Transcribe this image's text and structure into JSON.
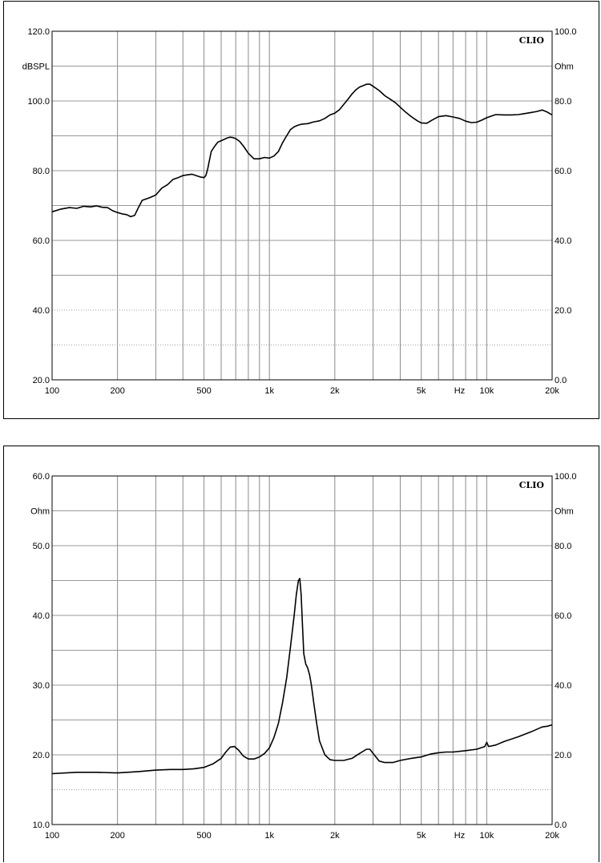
{
  "chart_data": [
    {
      "type": "line",
      "brand": "CLIO",
      "xscale": "log",
      "xlim": [
        100,
        20000
      ],
      "x_ticks": [
        "100",
        "200",
        "500",
        "1k",
        "2k",
        "5k",
        "Hz",
        "10k",
        "20k"
      ],
      "ylim": [
        20,
        120
      ],
      "y_ticks": [
        "120.0",
        "100.0",
        "80.0",
        "60.0",
        "40.0",
        "20.0"
      ],
      "y_unit": "dBSPL",
      "y2lim": [
        0,
        100
      ],
      "y2_ticks": [
        "100.0",
        "80.0",
        "60.0",
        "40.0",
        "20.0",
        "0.0"
      ],
      "y2_unit": "Ohm",
      "grid": true,
      "series": [
        {
          "x": [
            100,
            110,
            120,
            130,
            140,
            150,
            160,
            170,
            180,
            190,
            200,
            210,
            220,
            230,
            240,
            250,
            260,
            280,
            300,
            320,
            340,
            360,
            380,
            400,
            420,
            440,
            460,
            480,
            500,
            510,
            520,
            530,
            540,
            560,
            580,
            600,
            620,
            640,
            660,
            680,
            700,
            730,
            760,
            800,
            850,
            900,
            950,
            1000,
            1050,
            1100,
            1150,
            1200,
            1250,
            1300,
            1350,
            1400,
            1500,
            1600,
            1700,
            1800,
            1900,
            2000,
            2100,
            2200,
            2300,
            2400,
            2500,
            2600,
            2700,
            2800,
            2900,
            3000,
            3200,
            3400,
            3600,
            3800,
            4000,
            4200,
            4500,
            4800,
            5000,
            5300,
            5600,
            6000,
            6500,
            7000,
            7500,
            8000,
            8500,
            9000,
            9500,
            10000,
            11000,
            12000,
            13000,
            14000,
            15000,
            16000,
            17000,
            18000,
            19000,
            20000
          ],
          "values": [
            68.2,
            69.0,
            69.4,
            69.2,
            69.8,
            69.6,
            69.9,
            69.5,
            69.4,
            68.5,
            68.0,
            67.6,
            67.4,
            66.8,
            67.2,
            69.5,
            71.5,
            72.2,
            73.0,
            75.0,
            76.0,
            77.5,
            78.0,
            78.6,
            78.8,
            79.0,
            78.6,
            78.2,
            78.0,
            78.6,
            80.5,
            83.0,
            85.5,
            87.0,
            88.2,
            88.6,
            89.0,
            89.4,
            89.6,
            89.5,
            89.2,
            88.4,
            87.0,
            85.0,
            83.4,
            83.4,
            83.8,
            83.6,
            84.2,
            85.5,
            88.0,
            90.0,
            91.8,
            92.6,
            93.0,
            93.3,
            93.5,
            94.0,
            94.3,
            95.0,
            96.0,
            96.5,
            97.5,
            99.0,
            100.5,
            102.0,
            103.2,
            104.0,
            104.4,
            104.8,
            104.8,
            104.2,
            103.0,
            101.5,
            100.5,
            99.5,
            98.2,
            97.0,
            95.5,
            94.3,
            93.7,
            93.6,
            94.5,
            95.5,
            95.8,
            95.4,
            95.0,
            94.2,
            93.8,
            93.9,
            94.5,
            95.2,
            96.1,
            96.0,
            96.0,
            96.1,
            96.4,
            96.7,
            97.0,
            97.4,
            96.8,
            96.0
          ]
        }
      ]
    },
    {
      "type": "line",
      "brand": "CLIO",
      "xscale": "log",
      "xlim": [
        100,
        20000
      ],
      "x_ticks": [
        "100",
        "200",
        "500",
        "1k",
        "2k",
        "5k",
        "Hz",
        "10k",
        "20k"
      ],
      "ylim": [
        10,
        60
      ],
      "y_ticks": [
        "60.0",
        "50.0",
        "40.0",
        "30.0",
        "20.0",
        "10.0"
      ],
      "y_unit": "Ohm",
      "y2lim": [
        0,
        100
      ],
      "y2_ticks": [
        "100.0",
        "80.0",
        "60.0",
        "40.0",
        "20.0",
        "0.0"
      ],
      "y2_unit": "Ohm",
      "grid": true,
      "series": [
        {
          "x": [
            100,
            130,
            160,
            200,
            250,
            300,
            350,
            400,
            450,
            500,
            550,
            600,
            630,
            660,
            690,
            720,
            760,
            800,
            850,
            900,
            950,
            1000,
            1050,
            1100,
            1150,
            1200,
            1250,
            1300,
            1330,
            1360,
            1380,
            1400,
            1420,
            1440,
            1470,
            1500,
            1530,
            1560,
            1600,
            1650,
            1700,
            1800,
            1900,
            2000,
            2200,
            2400,
            2600,
            2800,
            2900,
            3000,
            3200,
            3400,
            3700,
            4000,
            4500,
            5000,
            5500,
            6000,
            6500,
            7000,
            8000,
            9000,
            9800,
            10000,
            10200,
            11000,
            12000,
            14000,
            16000,
            18000,
            19000,
            20000
          ],
          "values": [
            17.3,
            17.5,
            17.5,
            17.4,
            17.6,
            17.8,
            17.9,
            17.9,
            18.0,
            18.2,
            18.7,
            19.5,
            20.4,
            21.1,
            21.2,
            20.7,
            19.8,
            19.4,
            19.4,
            19.7,
            20.2,
            21.0,
            22.5,
            24.5,
            27.5,
            31.0,
            35.5,
            40.0,
            43.0,
            45.0,
            45.3,
            43.0,
            38.5,
            34.5,
            33.0,
            32.5,
            31.5,
            30.0,
            27.5,
            24.5,
            22.0,
            20.0,
            19.3,
            19.2,
            19.2,
            19.5,
            20.2,
            20.8,
            20.8,
            20.2,
            19.1,
            18.9,
            18.9,
            19.2,
            19.5,
            19.7,
            20.1,
            20.3,
            20.4,
            20.4,
            20.6,
            20.8,
            21.2,
            21.8,
            21.2,
            21.4,
            21.9,
            22.6,
            23.3,
            24.0,
            24.1,
            24.3
          ]
        }
      ]
    }
  ]
}
